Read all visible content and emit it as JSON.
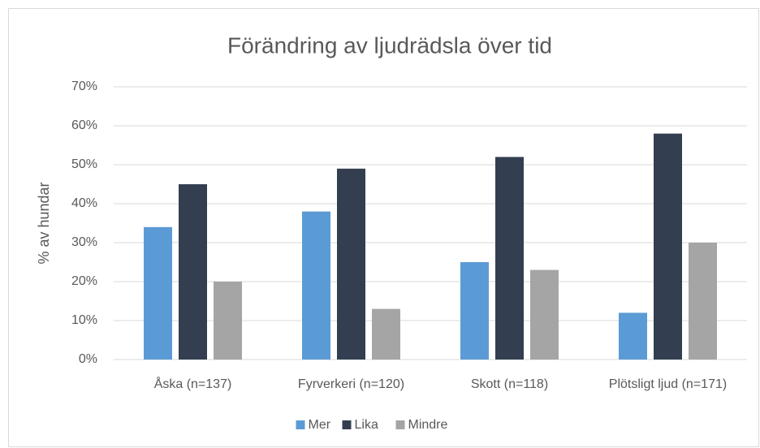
{
  "chart_data": {
    "type": "bar",
    "title": "Förändring av ljudrädsla över tid",
    "y_label": "% av hundar",
    "categories": [
      "Åska (n=137)",
      "Fyrverkeri (n=120)",
      "Skott (n=118)",
      "Plötsligt ljud (n=171)"
    ],
    "series": [
      {
        "name": "Mer",
        "color": "#5b9bd5",
        "values": [
          34,
          38,
          25,
          12
        ]
      },
      {
        "name": "Lika",
        "color": "#333f50",
        "values": [
          45,
          49,
          52,
          58
        ]
      },
      {
        "name": "Mindre",
        "color": "#a5a5a5",
        "values": [
          20,
          13,
          23,
          30
        ]
      }
    ],
    "ylim": [
      0,
      70
    ],
    "yticks": [
      {
        "value": 0,
        "label": "0%"
      },
      {
        "value": 10,
        "label": "10%"
      },
      {
        "value": 20,
        "label": "20%"
      },
      {
        "value": 30,
        "label": "30%"
      },
      {
        "value": 40,
        "label": "40%"
      },
      {
        "value": 50,
        "label": "50%"
      },
      {
        "value": 60,
        "label": "60%"
      },
      {
        "value": 70,
        "label": "70%"
      }
    ],
    "grid": true,
    "legend": "bottom"
  }
}
